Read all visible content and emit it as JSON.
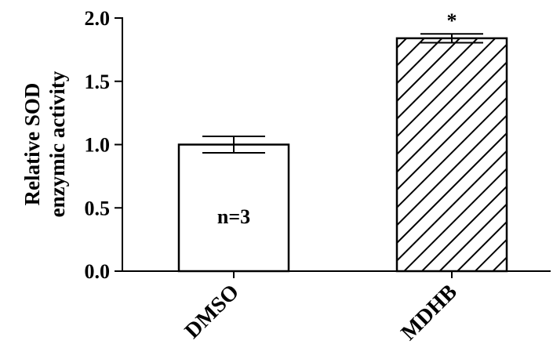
{
  "chart_data": {
    "type": "bar",
    "title": "",
    "xlabel": "",
    "ylabel_lines": [
      "Relative SOD",
      "enzymic activity"
    ],
    "categories": [
      "DMSO",
      "MDHB"
    ],
    "values": [
      1.0,
      1.84
    ],
    "errors": [
      0.065,
      0.035
    ],
    "patterns": [
      "none",
      "diagonal-hatch"
    ],
    "ylim": [
      0.0,
      2.0
    ],
    "yticks": [
      0.0,
      0.5,
      1.0,
      1.5,
      2.0
    ],
    "ytick_labels": [
      "0.0",
      "0.5",
      "1.0",
      "1.5",
      "2.0"
    ],
    "annotations": {
      "in_bar_text": "n=3",
      "in_bar_category": "DMSO",
      "significance_mark": "*",
      "significance_category": "MDHB"
    },
    "colors": {
      "bar_fill": "#ffffff",
      "stroke": "#000000"
    },
    "grid": false,
    "legend": "none"
  }
}
